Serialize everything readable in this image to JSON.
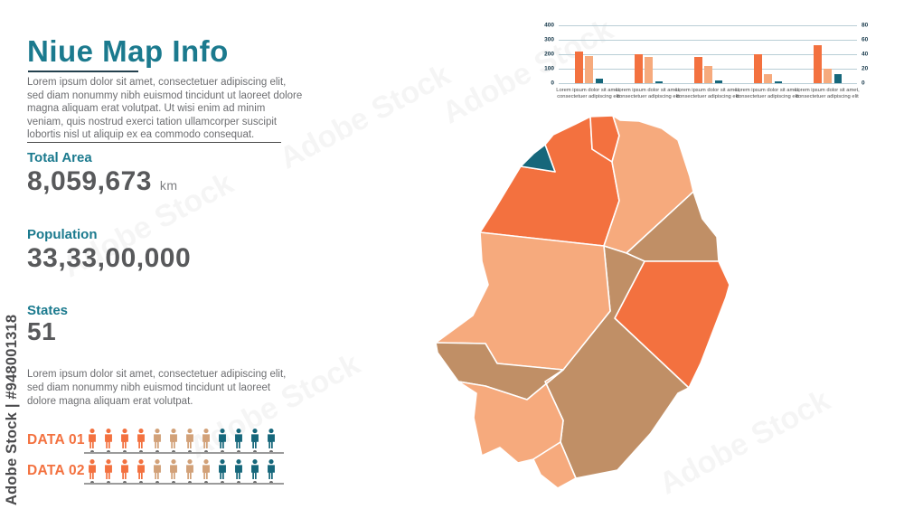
{
  "colors": {
    "orange": "#F3713F",
    "peach": "#F6AA7D",
    "tan": "#C08F66",
    "tan_light": "#D2A178",
    "teal": "#16677B",
    "title_teal": "#1B7A8E",
    "value_gray": "#58595B",
    "body_gray": "#6D6E71",
    "grid_blue": "#B9CED6",
    "axis_text": "#16384A",
    "divider_dark": "#23404E",
    "watermark_gray": "#4B4B4D",
    "line_gray": "#9B9B9B",
    "dot_gray": "#6E6E6E"
  },
  "watermark": {
    "side_text": "Adobe Stock | #948001318",
    "tile_text": "Adobe Stock"
  },
  "panel": {
    "title": "Niue Map Info",
    "intro": "Lorem ipsum dolor sit amet, consectetuer adipiscing elit, sed diam nonummy nibh euismod tincidunt ut laoreet dolore magna aliquam erat volutpat. Ut wisi enim ad minim veniam, quis nostrud exerci tation ullamcorper suscipit lobortis nisl ut aliquip ex ea commodo consequat.",
    "stats": [
      {
        "label": "Total Area",
        "value": "8,059,673",
        "unit": "km"
      },
      {
        "label": "Population",
        "value": "33,33,00,000",
        "unit": ""
      },
      {
        "label": "States",
        "value": "51",
        "unit": ""
      }
    ],
    "footer_text": "Lorem ipsum dolor sit amet, consectetuer adipiscing elit, sed diam nonummy nibh euismod tincidunt ut laoreet dolore magna aliquam erat volutpat."
  },
  "chart_data": [
    {
      "type": "bar",
      "title": "",
      "categories": [
        "Lorem ipsum dolor sit amet, consectetuer adipiscing elit",
        "Lorem ipsum dolor sit amet, consectetuer adipiscing elit",
        "Lorem ipsum dolor sit amet, consectetuer adipiscing elit",
        "Lorem ipsum dolor sit amet, consectetuer adipiscing elit",
        "Lorem ipsum dolor sit amet, consectetuer adipiscing elit"
      ],
      "series": [
        {
          "name": "series-orange",
          "color_key": "orange",
          "values": [
            220,
            200,
            180,
            200,
            265
          ]
        },
        {
          "name": "series-peach",
          "color_key": "peach",
          "values": [
            185,
            180,
            120,
            60,
            100
          ]
        },
        {
          "name": "series-teal",
          "color_key": "teal",
          "values": [
            30,
            12,
            20,
            10,
            60
          ]
        }
      ],
      "left_axis": {
        "ticks": [
          0,
          100,
          200,
          300,
          400
        ],
        "max": 400
      },
      "right_axis": {
        "ticks": [
          0,
          20,
          40,
          60,
          80
        ],
        "max": 80
      },
      "grid": true,
      "legend": false
    },
    {
      "type": "pictograph",
      "rows": [
        {
          "label": "DATA 01",
          "groups": [
            {
              "color_key": "orange",
              "count": 4
            },
            {
              "color_key": "tan_light",
              "count": 4
            },
            {
              "color_key": "teal",
              "count": 4
            }
          ]
        },
        {
          "label": "DATA 02",
          "groups": [
            {
              "color_key": "orange",
              "count": 4
            },
            {
              "color_key": "tan_light",
              "count": 4
            },
            {
              "color_key": "teal",
              "count": 4
            }
          ]
        }
      ]
    }
  ],
  "map": {
    "regions": [
      {
        "id": "region-1",
        "color_key": "teal"
      },
      {
        "id": "region-2",
        "color_key": "orange"
      },
      {
        "id": "region-3",
        "color_key": "orange"
      },
      {
        "id": "region-4",
        "color_key": "peach"
      },
      {
        "id": "region-5",
        "color_key": "tan"
      },
      {
        "id": "region-6",
        "color_key": "orange"
      },
      {
        "id": "region-7",
        "color_key": "tan"
      },
      {
        "id": "region-8",
        "color_key": "peach"
      },
      {
        "id": "region-9",
        "color_key": "tan"
      },
      {
        "id": "region-10",
        "color_key": "peach"
      },
      {
        "id": "region-11",
        "color_key": "peach"
      }
    ]
  }
}
